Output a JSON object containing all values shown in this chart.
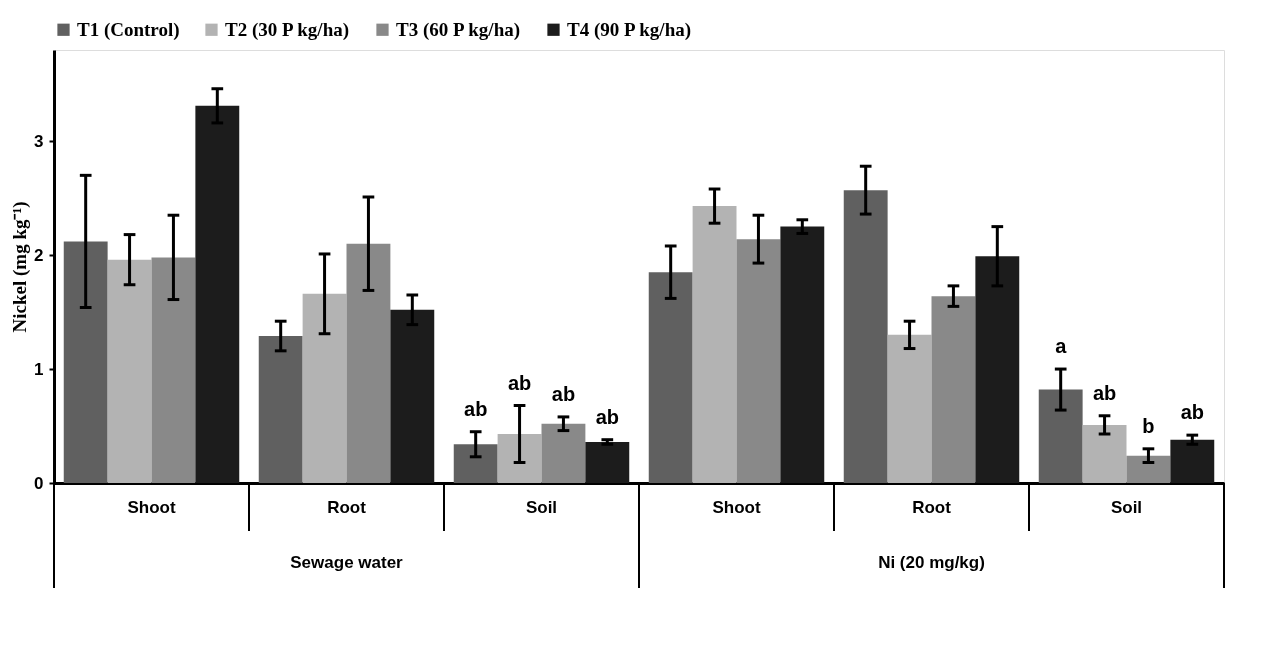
{
  "chart_data": {
    "type": "bar",
    "categories": [
      "Shoot",
      "Root",
      "Soil",
      "Shoot",
      "Root",
      "Soil"
    ],
    "ylabel": "Nickel (mg kg⁻¹)",
    "ylim": [
      0,
      3.8
    ],
    "yticks": [
      0,
      1,
      2,
      3
    ],
    "annotations": [
      "Sewage water",
      "Ni (20 mg/kg)"
    ],
    "legend": "top",
    "grid": false,
    "series": [
      {
        "name": "T1 (Control)",
        "color": "#606060",
        "values": [
          2.12,
          1.29,
          0.34,
          1.85,
          2.57,
          0.82
        ],
        "errors": [
          0.58,
          0.13,
          0.11,
          0.23,
          0.21,
          0.18
        ],
        "value_labels": [
          null,
          null,
          "ab",
          null,
          null,
          "a"
        ]
      },
      {
        "name": "T2 (30 P kg/ha)",
        "color": "#b3b3b3",
        "values": [
          1.96,
          1.66,
          0.43,
          2.43,
          1.3,
          0.51
        ],
        "errors": [
          0.22,
          0.35,
          0.25,
          0.15,
          0.12,
          0.08
        ],
        "value_labels": [
          null,
          null,
          "ab",
          null,
          null,
          "ab"
        ]
      },
      {
        "name": "T3 (60 P kg/ha)",
        "color": "#898989",
        "values": [
          1.98,
          2.1,
          0.52,
          2.14,
          1.64,
          0.24
        ],
        "errors": [
          0.37,
          0.41,
          0.06,
          0.21,
          0.09,
          0.06
        ],
        "value_labels": [
          null,
          null,
          "ab",
          null,
          null,
          "b"
        ]
      },
      {
        "name": "T4 (90 P kg/ha)",
        "color": "#1c1c1c",
        "values": [
          3.31,
          1.52,
          0.36,
          2.25,
          1.99,
          0.38
        ],
        "errors": [
          0.15,
          0.13,
          0.02,
          0.06,
          0.26,
          0.04
        ],
        "value_labels": [
          null,
          null,
          "ab",
          null,
          null,
          "ab"
        ]
      }
    ]
  }
}
